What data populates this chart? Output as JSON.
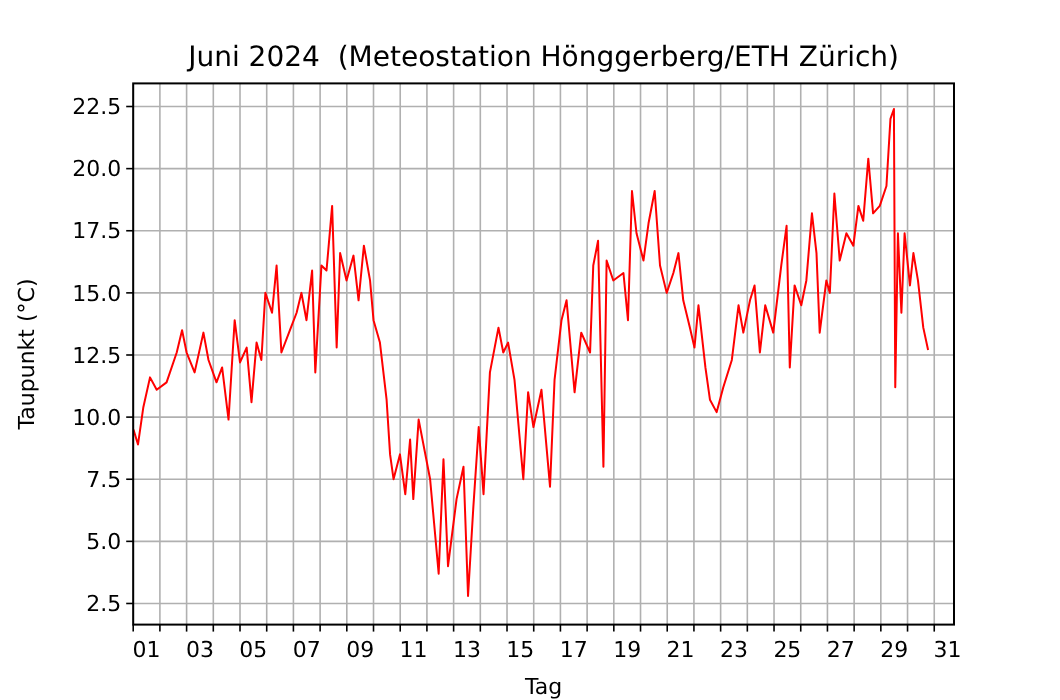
{
  "chart_data": {
    "type": "line",
    "title": "Juni 2024  (Meteostation Hönggerberg/ETH Zürich)",
    "xlabel": "Tag",
    "ylabel": "Taupunkt (°C)",
    "xlim": [
      1,
      31.74
    ],
    "ylim": [
      1.65,
      23.43
    ],
    "xticks": [
      {
        "value": 1,
        "label": null
      },
      {
        "value": 2,
        "label": null
      },
      {
        "value": 3,
        "label": null
      },
      {
        "value": 4,
        "label": null
      },
      {
        "value": 5,
        "label": null
      },
      {
        "value": 6,
        "label": null
      },
      {
        "value": 7,
        "label": null
      },
      {
        "value": 8,
        "label": null
      },
      {
        "value": 9,
        "label": null
      },
      {
        "value": 10,
        "label": null
      },
      {
        "value": 11,
        "label": null
      },
      {
        "value": 12,
        "label": null
      },
      {
        "value": 13,
        "label": null
      },
      {
        "value": 14,
        "label": null
      },
      {
        "value": 15,
        "label": null
      },
      {
        "value": 16,
        "label": null
      },
      {
        "value": 17,
        "label": null
      },
      {
        "value": 18,
        "label": null
      },
      {
        "value": 19,
        "label": null
      },
      {
        "value": 20,
        "label": null
      },
      {
        "value": 21,
        "label": null
      },
      {
        "value": 22,
        "label": null
      },
      {
        "value": 23,
        "label": null
      },
      {
        "value": 24,
        "label": null
      },
      {
        "value": 25,
        "label": null
      },
      {
        "value": 26,
        "label": null
      },
      {
        "value": 27,
        "label": null
      },
      {
        "value": 28,
        "label": null
      },
      {
        "value": 29,
        "label": null
      },
      {
        "value": 30,
        "label": null
      },
      {
        "value": 31,
        "label": null
      },
      {
        "value": 1.5,
        "label": "01"
      },
      {
        "value": 3.5,
        "label": "03"
      },
      {
        "value": 5.5,
        "label": "05"
      },
      {
        "value": 7.5,
        "label": "07"
      },
      {
        "value": 9.5,
        "label": "09"
      },
      {
        "value": 11.5,
        "label": "11"
      },
      {
        "value": 13.5,
        "label": "13"
      },
      {
        "value": 15.5,
        "label": "15"
      },
      {
        "value": 17.5,
        "label": "17"
      },
      {
        "value": 19.5,
        "label": "19"
      },
      {
        "value": 21.5,
        "label": "21"
      },
      {
        "value": 23.5,
        "label": "23"
      },
      {
        "value": 25.5,
        "label": "25"
      },
      {
        "value": 27.5,
        "label": "27"
      },
      {
        "value": 29.5,
        "label": "29"
      },
      {
        "value": 31.5,
        "label": "31"
      }
    ],
    "yticks": [
      2.5,
      {
        "value": 5,
        "label": "5.0"
      },
      7.5,
      {
        "value": 10,
        "label": "10.0"
      },
      12.5,
      {
        "value": 15,
        "label": "15.0"
      },
      17.5,
      {
        "value": 20,
        "label": "20.0"
      },
      22.5
    ],
    "grid": true,
    "marker": "none",
    "line_style": "solid",
    "series": [
      {
        "color": "#ff0000",
        "x": [
          1.01,
          1.18,
          1.38,
          1.63,
          1.88,
          2.25,
          2.63,
          2.83,
          3.0,
          3.3,
          3.63,
          3.82,
          4.12,
          4.33,
          4.57,
          4.8,
          5.0,
          5.25,
          5.43,
          5.62,
          5.8,
          5.95,
          6.2,
          6.37,
          6.55,
          6.87,
          7.12,
          7.3,
          7.49,
          7.7,
          7.82,
          8.05,
          8.24,
          8.45,
          8.62,
          8.75,
          8.99,
          9.25,
          9.44,
          9.64,
          9.87,
          10.0,
          10.24,
          10.49,
          10.62,
          10.75,
          10.99,
          11.19,
          11.37,
          11.49,
          11.69,
          12.12,
          12.44,
          12.62,
          12.79,
          13.11,
          13.37,
          13.54,
          13.74,
          13.94,
          14.12,
          14.36,
          14.68,
          14.86,
          15.04,
          15.28,
          15.61,
          15.79,
          15.99,
          16.29,
          16.61,
          16.78,
          17.04,
          17.23,
          17.53,
          17.78,
          18.11,
          18.23,
          18.41,
          18.61,
          18.73,
          18.98,
          19.36,
          19.53,
          19.68,
          19.85,
          20.11,
          20.3,
          20.53,
          20.73,
          20.98,
          21.23,
          21.42,
          21.6,
          21.85,
          22.02,
          22.17,
          22.43,
          22.6,
          22.85,
          23.1,
          23.42,
          23.67,
          23.85,
          24.1,
          24.27,
          24.47,
          24.67,
          24.97,
          25.27,
          25.47,
          25.59,
          25.77,
          26.02,
          26.21,
          26.42,
          26.59,
          26.71,
          26.96,
          27.09,
          27.26,
          27.46,
          27.71,
          27.97,
          28.16,
          28.34,
          28.53,
          28.71,
          28.96,
          29.21,
          29.36,
          29.49,
          29.54,
          29.64,
          29.77,
          29.89,
          30.09,
          30.22,
          30.39,
          30.59,
          30.77
        ],
        "values": [
          9.5,
          8.9,
          10.4,
          11.6,
          11.1,
          11.4,
          12.6,
          13.5,
          12.6,
          11.8,
          13.4,
          12.3,
          11.4,
          12.0,
          9.9,
          13.9,
          12.2,
          12.8,
          10.6,
          13.0,
          12.3,
          15.0,
          14.2,
          16.1,
          12.6,
          13.5,
          14.2,
          15.0,
          13.9,
          15.9,
          11.8,
          16.1,
          15.9,
          18.5,
          12.8,
          16.6,
          15.5,
          16.5,
          14.7,
          16.9,
          15.5,
          13.9,
          13.0,
          10.7,
          8.5,
          7.5,
          8.5,
          6.9,
          9.1,
          6.7,
          9.9,
          7.5,
          3.7,
          8.3,
          4.0,
          6.7,
          8.0,
          2.8,
          6.4,
          9.6,
          6.9,
          11.8,
          13.6,
          12.6,
          13.0,
          11.5,
          7.5,
          11.0,
          9.6,
          11.1,
          7.2,
          11.5,
          13.9,
          14.7,
          11.0,
          13.4,
          12.6,
          16.1,
          17.1,
          8.0,
          16.3,
          15.5,
          15.8,
          13.9,
          19.1,
          17.4,
          16.3,
          17.8,
          19.1,
          16.1,
          15.0,
          15.8,
          16.6,
          14.7,
          13.6,
          12.8,
          14.5,
          12.0,
          10.7,
          10.2,
          11.2,
          12.3,
          14.5,
          13.4,
          14.7,
          15.3,
          12.6,
          14.5,
          13.4,
          16.1,
          17.7,
          12.0,
          15.3,
          14.5,
          15.5,
          18.2,
          16.6,
          13.4,
          15.5,
          15.0,
          19.0,
          16.3,
          17.4,
          16.9,
          18.5,
          17.9,
          20.4,
          18.2,
          18.5,
          19.3,
          22.0,
          22.4,
          11.2,
          17.4,
          14.2,
          17.4,
          15.3,
          16.6,
          15.5,
          13.6,
          12.7
        ]
      }
    ]
  }
}
